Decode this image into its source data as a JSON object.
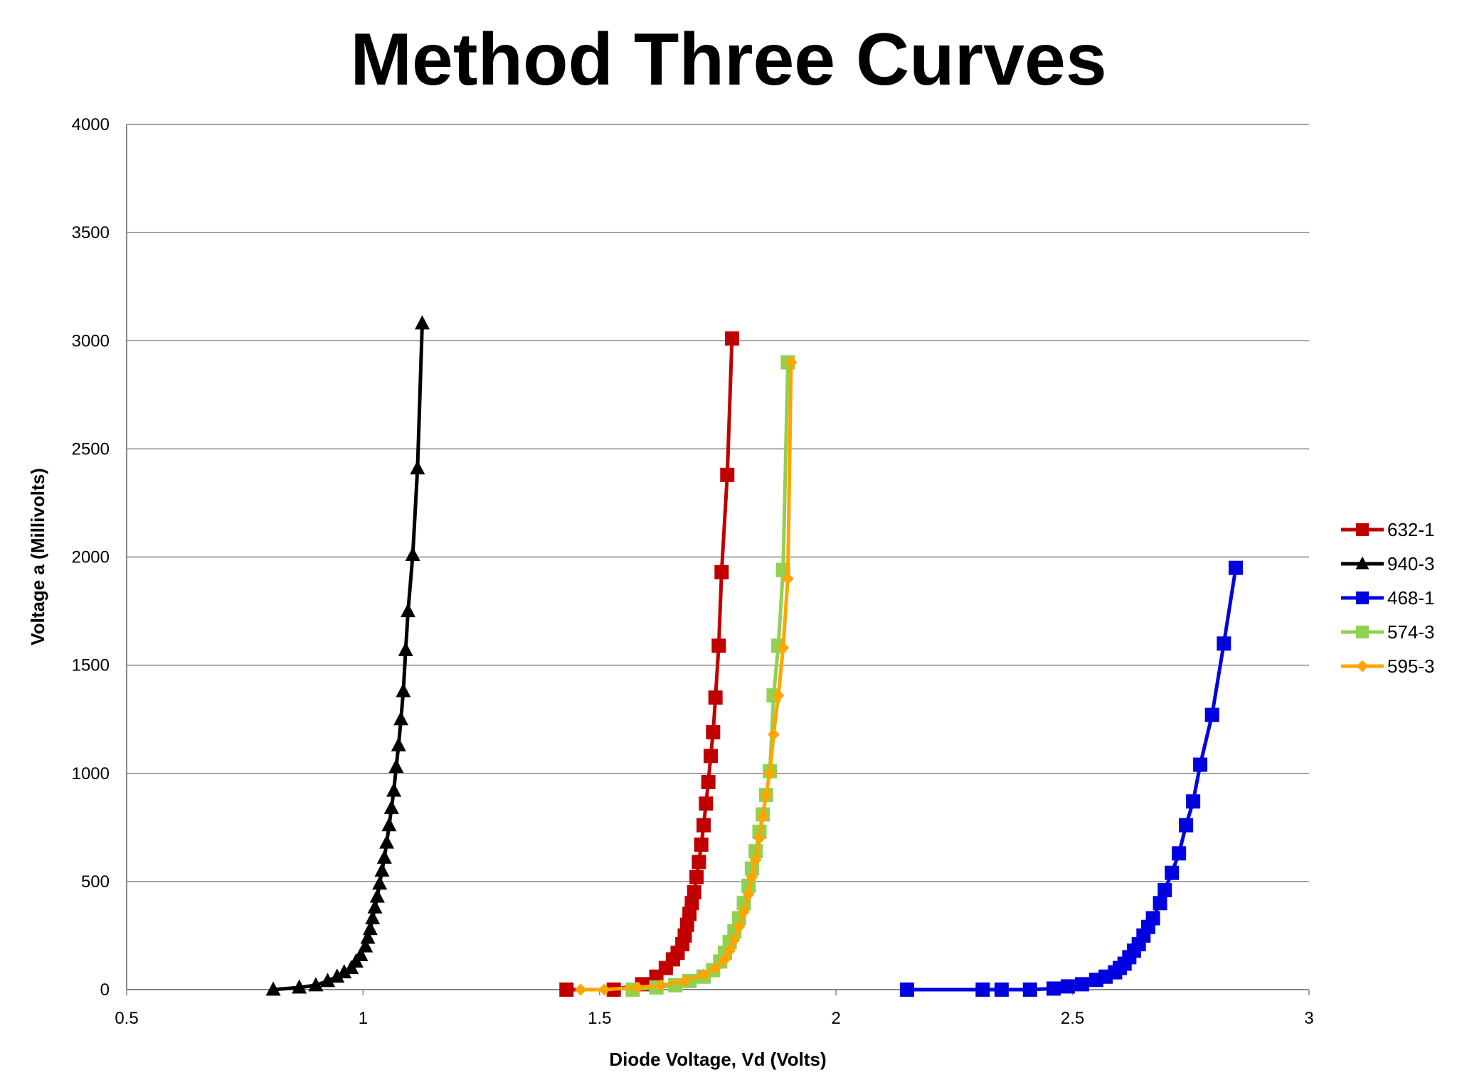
{
  "chart_data": {
    "type": "line",
    "title": "Method Three Curves",
    "xlabel": "Diode Voltage, Vd (Volts)",
    "ylabel": "Voltage a (Millivolts)",
    "xlim": [
      0.5,
      3
    ],
    "ylim": [
      0,
      4000
    ],
    "xticks": [
      "0.5",
      "1",
      "1.5",
      "2",
      "2.5",
      "3"
    ],
    "yticks": [
      "0",
      "500",
      "1000",
      "1500",
      "2000",
      "2500",
      "3000",
      "3500",
      "4000"
    ],
    "grid": "horizontal",
    "legend_position": "right",
    "series": [
      {
        "name": "632-1",
        "color": "#c00000",
        "marker": "square",
        "x": [
          1.43,
          1.53,
          1.59,
          1.62,
          1.64,
          1.655,
          1.665,
          1.675,
          1.68,
          1.685,
          1.69,
          1.695,
          1.7,
          1.705,
          1.71,
          1.715,
          1.72,
          1.725,
          1.73,
          1.735,
          1.74,
          1.745,
          1.752,
          1.758,
          1.77,
          1.78
        ],
        "y": [
          0,
          0,
          25,
          60,
          100,
          140,
          170,
          210,
          250,
          300,
          350,
          400,
          450,
          520,
          590,
          670,
          760,
          860,
          960,
          1080,
          1190,
          1350,
          1590,
          1930,
          2380,
          3010
        ]
      },
      {
        "name": "940-3",
        "color": "#000000",
        "marker": "triangle",
        "x": [
          0.81,
          0.865,
          0.9,
          0.925,
          0.945,
          0.96,
          0.975,
          0.985,
          0.995,
          1.005,
          1.01,
          1.015,
          1.02,
          1.025,
          1.03,
          1.035,
          1.04,
          1.045,
          1.05,
          1.055,
          1.06,
          1.065,
          1.07,
          1.075,
          1.08,
          1.085,
          1.09,
          1.095,
          1.105,
          1.115,
          1.125
        ],
        "y": [
          0,
          10,
          20,
          40,
          60,
          80,
          100,
          130,
          160,
          200,
          240,
          280,
          330,
          380,
          430,
          490,
          550,
          610,
          680,
          760,
          840,
          920,
          1030,
          1130,
          1250,
          1380,
          1570,
          1750,
          2010,
          2410,
          3080
        ]
      },
      {
        "name": "468-1",
        "color": "#0000e0",
        "marker": "square",
        "x": [
          2.15,
          2.31,
          2.35,
          2.41,
          2.46,
          2.49,
          2.52,
          2.55,
          2.57,
          2.59,
          2.6,
          2.61,
          2.62,
          2.63,
          2.64,
          2.65,
          2.66,
          2.67,
          2.685,
          2.695,
          2.71,
          2.725,
          2.74,
          2.755,
          2.77,
          2.795,
          2.82,
          2.845
        ],
        "y": [
          0,
          0,
          0,
          0,
          5,
          15,
          25,
          45,
          60,
          80,
          100,
          120,
          150,
          180,
          210,
          250,
          290,
          330,
          400,
          460,
          540,
          630,
          760,
          870,
          1040,
          1270,
          1600,
          1950
        ]
      },
      {
        "name": "574-3",
        "color": "#92d050",
        "marker": "square",
        "x": [
          1.57,
          1.62,
          1.66,
          1.69,
          1.72,
          1.74,
          1.755,
          1.765,
          1.775,
          1.785,
          1.795,
          1.805,
          1.815,
          1.822,
          1.83,
          1.838,
          1.845,
          1.852,
          1.86,
          1.868,
          1.878,
          1.888,
          1.898
        ],
        "y": [
          0,
          10,
          20,
          40,
          60,
          90,
          130,
          170,
          220,
          270,
          330,
          400,
          480,
          560,
          640,
          730,
          810,
          900,
          1010,
          1360,
          1590,
          1940,
          2900
        ]
      },
      {
        "name": "595-3",
        "color": "#ffa500",
        "marker": "diamond",
        "x": [
          1.46,
          1.51,
          1.58,
          1.63,
          1.68,
          1.72,
          1.745,
          1.765,
          1.775,
          1.785,
          1.795,
          1.805,
          1.815,
          1.822,
          1.83,
          1.838,
          1.845,
          1.852,
          1.86,
          1.868,
          1.878,
          1.888,
          1.898,
          1.905
        ],
        "y": [
          0,
          0,
          10,
          20,
          40,
          70,
          100,
          140,
          180,
          230,
          290,
          360,
          440,
          520,
          600,
          700,
          800,
          900,
          1000,
          1180,
          1360,
          1580,
          1900,
          2900
        ]
      }
    ]
  }
}
